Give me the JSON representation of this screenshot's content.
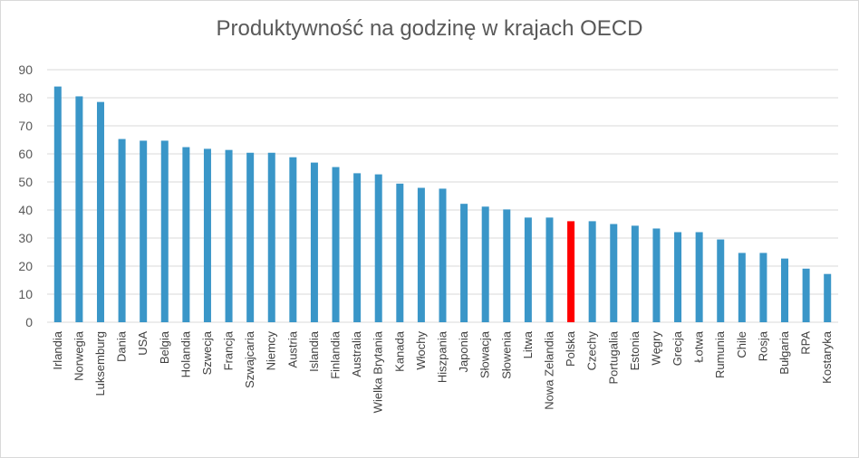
{
  "chart_data": {
    "type": "bar",
    "title": "Produktywność na godzinę w krajach OECD",
    "xlabel": "",
    "ylabel": "",
    "ylim": [
      0,
      90
    ],
    "yticks": [
      "0",
      "10",
      "20",
      "30",
      "40",
      "50",
      "60",
      "70",
      "80",
      "90"
    ],
    "grid": true,
    "legend": "none",
    "categories": [
      "Irlandia",
      "Norwegia",
      "Luksemburg",
      "Dania",
      "USA",
      "Belgia",
      "Holandia",
      "Szwecja",
      "Francja",
      "Szwajcaria",
      "Niemcy",
      "Austria",
      "Islandia",
      "Finlandia",
      "Australia",
      "Wielka Brytania",
      "Kanada",
      "Włochy",
      "Hiszpania",
      "Japonia",
      "Słowacja",
      "Słowenia",
      "Litwa",
      "Nowa Zelandia",
      "Polska",
      "Czechy",
      "Portugalia",
      "Estonia",
      "Węgry",
      "Grecja",
      "Łotwa",
      "Rumunia",
      "Chile",
      "Rosja",
      "Bułgaria",
      "RPA",
      "Kostaryka"
    ],
    "values": [
      84.0,
      80.5,
      78.5,
      65.3,
      64.7,
      64.7,
      62.4,
      61.8,
      61.4,
      60.4,
      60.4,
      58.8,
      56.9,
      55.3,
      53.1,
      52.7,
      49.4,
      47.9,
      47.6,
      42.2,
      41.2,
      40.2,
      37.3,
      37.3,
      36.0,
      36.0,
      35.0,
      34.4,
      33.4,
      32.1,
      32.1,
      29.5,
      24.7,
      24.7,
      22.7,
      19.1,
      17.2
    ],
    "colors": {
      "default": "#3a96c8",
      "highlight": "#ff0000",
      "grid": "#d9d9d9"
    },
    "highlight": "Polska"
  }
}
